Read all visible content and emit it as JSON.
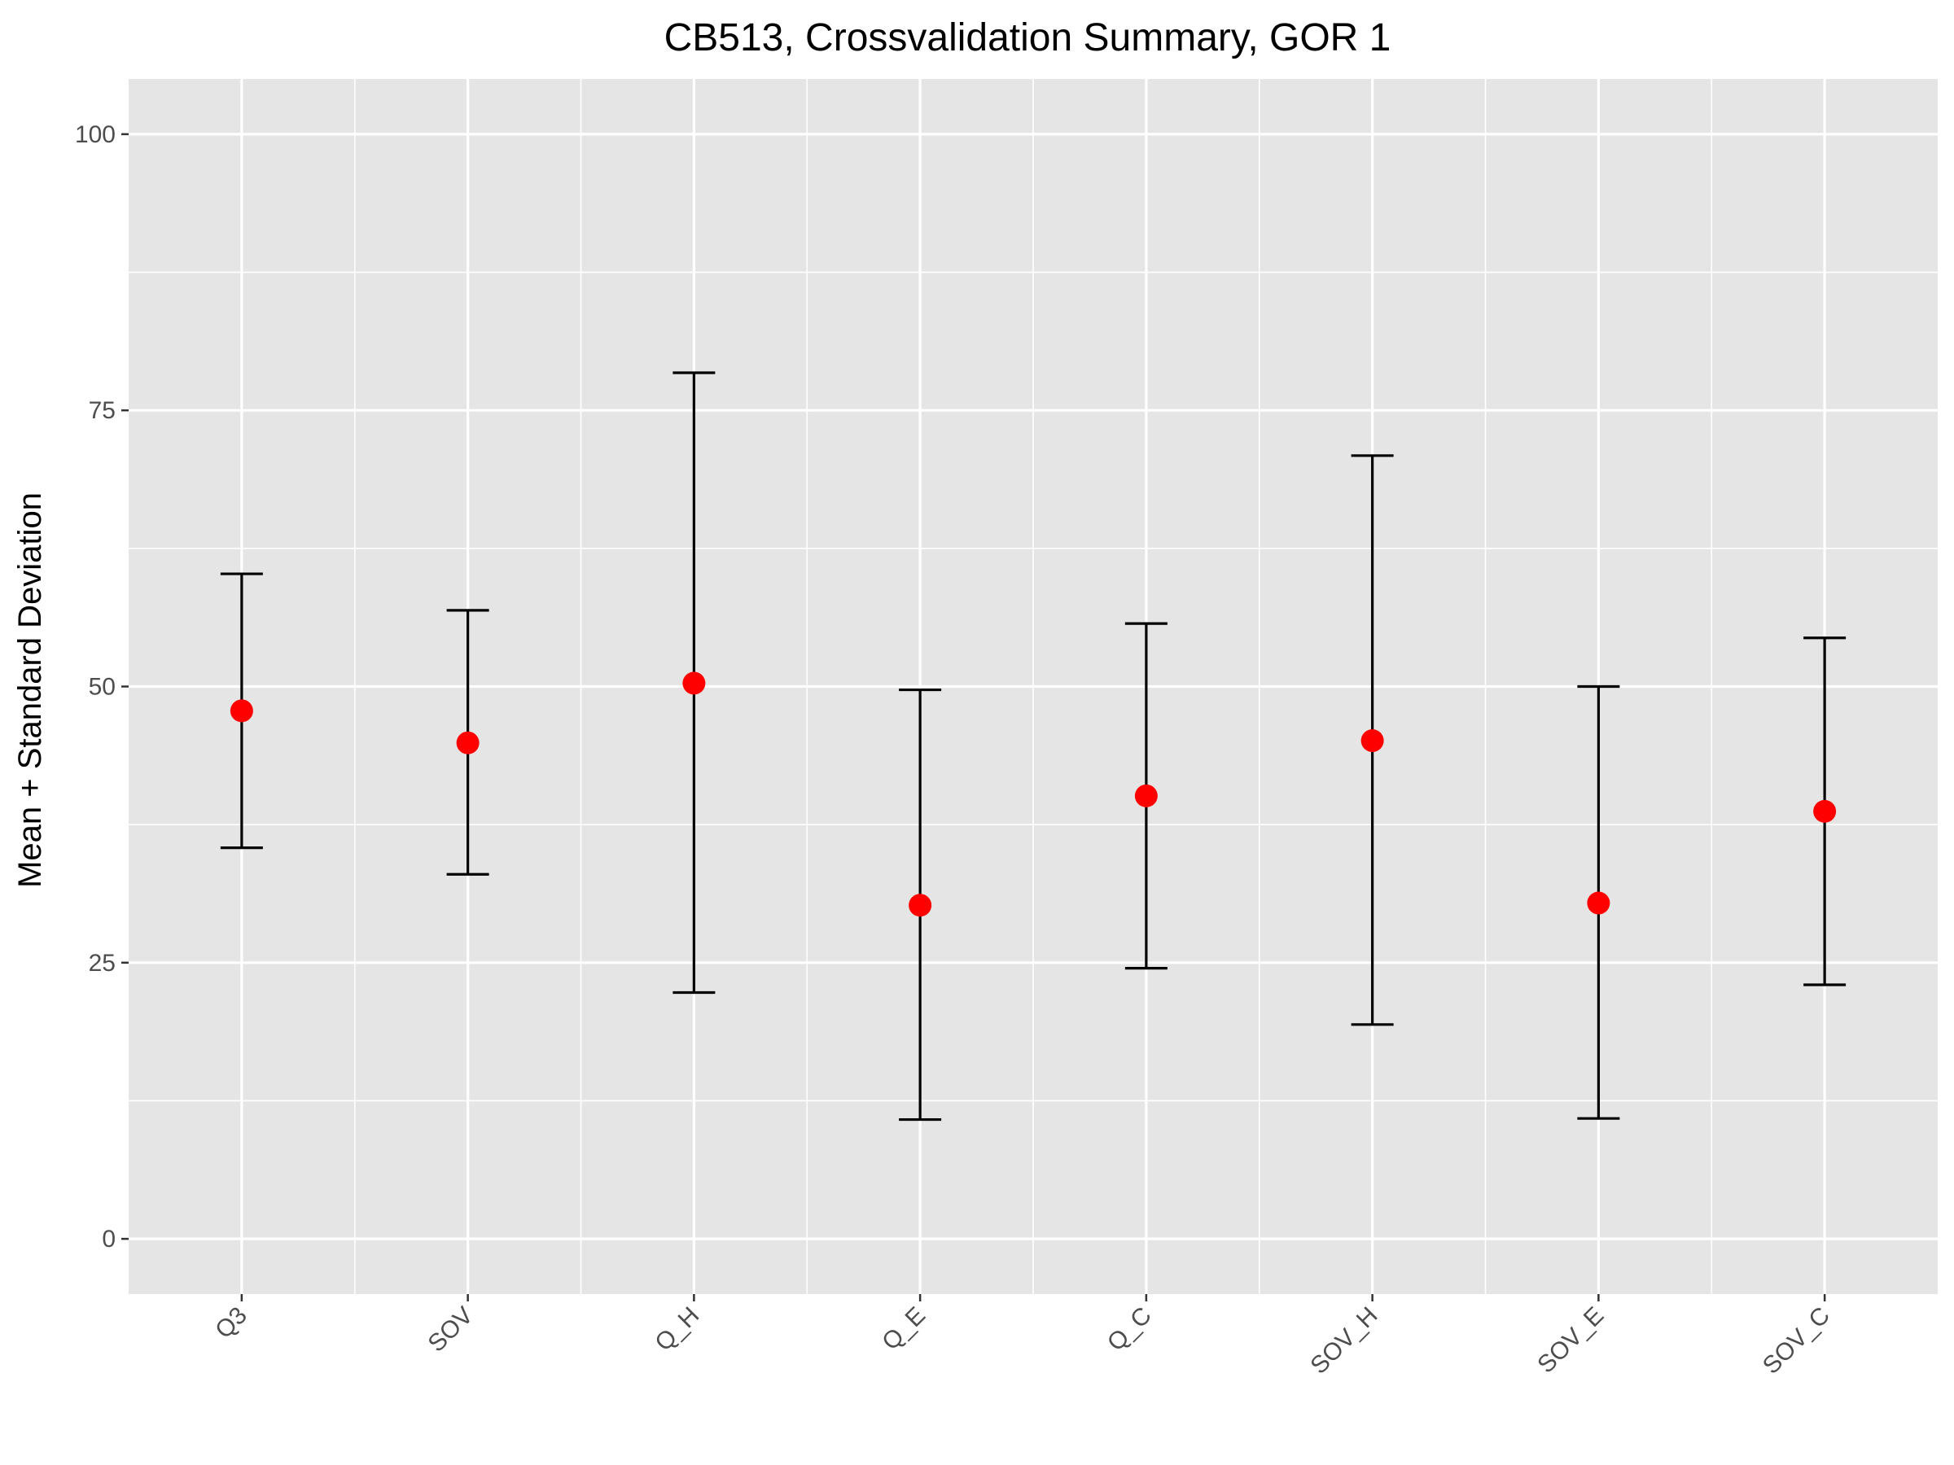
{
  "chart_data": {
    "type": "scatter",
    "title": "CB513, Crossvalidation Summary, GOR 1",
    "xlabel": "",
    "ylabel": "Mean + Standard Deviation",
    "categories": [
      "Q3",
      "SOV",
      "Q_H",
      "Q_E",
      "Q_C",
      "SOV_H",
      "SOV_E",
      "SOV_C"
    ],
    "series": [
      {
        "values": [
          47.8,
          44.9,
          50.3,
          30.2,
          40.1,
          45.1,
          30.4,
          38.7
        ],
        "error_low": [
          35.4,
          33.0,
          22.3,
          10.8,
          24.5,
          19.4,
          10.9,
          23.0
        ],
        "error_high": [
          60.2,
          56.9,
          78.4,
          49.7,
          55.7,
          70.9,
          50.0,
          54.4
        ]
      }
    ],
    "ylim": [
      -5,
      105
    ],
    "yticks": [
      0,
      25,
      50,
      75,
      100
    ],
    "grid": true,
    "point_color": "#ff0000",
    "error_bar_color": "#000000",
    "panel_background": "#e5e5e5",
    "grid_color": "#ffffff"
  }
}
